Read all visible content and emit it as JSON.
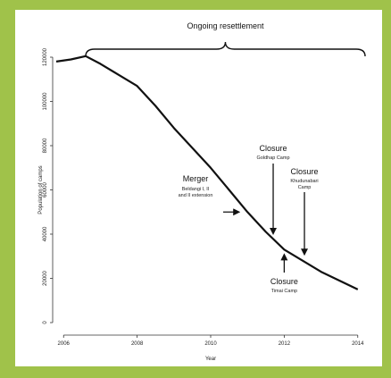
{
  "colors": {
    "frame": "#a0c24a",
    "panel": "#ffffff",
    "line": "#111111"
  },
  "chart_data": {
    "type": "line",
    "title": "",
    "xlabel": "Year",
    "ylabel": "Population of camps",
    "xlim": [
      2005.8,
      2014.2
    ],
    "ylim": [
      0,
      120000
    ],
    "xticks": [
      2006,
      2008,
      2010,
      2012,
      2014
    ],
    "xtick_labels": [
      "2006",
      "2008",
      "2010",
      "2012",
      "2014"
    ],
    "yticks": [
      0,
      20000,
      40000,
      60000,
      80000,
      100000,
      120000
    ],
    "ytick_labels": [
      "0",
      "20000",
      "40000",
      "60000",
      "80000",
      "100000",
      "120000"
    ],
    "grid": false,
    "series": [
      {
        "x": [
          2005.8,
          2006.2,
          2006.6,
          2007.0,
          2007.5,
          2008.0,
          2008.5,
          2009.0,
          2009.5,
          2010.0,
          2010.5,
          2011.0,
          2011.5,
          2012.0,
          2012.5,
          2013.0,
          2013.5,
          2014.0
        ],
        "y": [
          118000,
          119000,
          120500,
          117000,
          112000,
          107000,
          98000,
          88000,
          79000,
          70000,
          60000,
          50000,
          41000,
          33000,
          28000,
          23000,
          19000,
          15000
        ]
      }
    ],
    "brace": {
      "label": "Ongoing resettlement",
      "x_start": 2006.6,
      "x_end": 2014.2
    },
    "annotations": [
      {
        "title": "Merger",
        "sub1": "Beldangi I, II",
        "sub2": "and II extension",
        "x": 2011.0,
        "y": 50000,
        "arrow": "right"
      },
      {
        "title": "Closure",
        "sub1": "Goldhap Camp",
        "sub2": "",
        "x": 2011.7,
        "y": 38000,
        "arrow": "down"
      },
      {
        "title": "Closure",
        "sub1": "Khudunabari",
        "sub2": "Camp",
        "x": 2012.55,
        "y": 29000,
        "arrow": "down"
      },
      {
        "title": "Closure",
        "sub1": "Timai Camp",
        "sub2": "",
        "x": 2012.0,
        "y": 33000,
        "arrow": "up"
      }
    ]
  }
}
